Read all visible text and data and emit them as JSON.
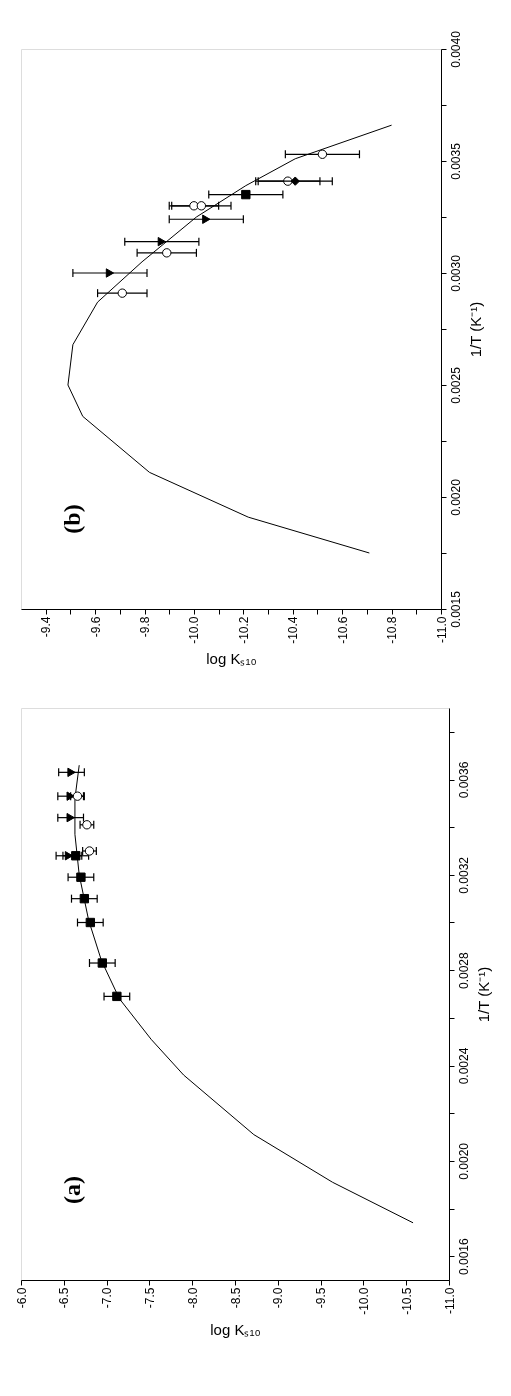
{
  "chart_data": [
    {
      "type": "scatter",
      "xlabel": "log Kₛ₁₀",
      "ylabel": "1/T  (K⁻¹)",
      "annotations": [
        "(b)"
      ],
      "grid": false,
      "ylim": [
        0.0015,
        0.004
      ],
      "yticks": [
        0.0015,
        {
          "value": 0.00175,
          "label": null
        },
        {
          "value": 0.002,
          "label": "0.0020"
        },
        {
          "value": 0.00225,
          "label": null
        },
        0.0025,
        {
          "value": 0.00275,
          "label": null
        },
        {
          "value": 0.003,
          "label": "0.0030"
        },
        {
          "value": 0.00325,
          "label": null
        },
        0.0035,
        {
          "value": 0.00375,
          "label": null
        },
        {
          "value": 0.004,
          "label": "0.0040"
        }
      ],
      "xlim": [
        -9.3,
        -11.0
      ],
      "xticks": [
        {
          "value": -11.0,
          "label": "-11.0"
        },
        {
          "value": -10.9,
          "label": null
        },
        -10.8,
        {
          "value": -10.7,
          "label": null
        },
        -10.6,
        {
          "value": -10.5,
          "label": null
        },
        -10.4,
        {
          "value": -10.3,
          "label": null
        },
        -10.2,
        {
          "value": -10.1,
          "label": null
        },
        {
          "value": -10.0,
          "label": "-10.0"
        },
        {
          "value": -9.9,
          "label": null
        },
        -9.8,
        {
          "value": -9.7,
          "label": null
        },
        -9.6,
        {
          "value": -9.5,
          "label": null
        },
        -9.4
      ],
      "series": [
        {
          "type": "line",
          "color": "#000000",
          "marker": "none",
          "x": [
            -10.71,
            -10.22,
            -9.82,
            -9.55,
            -9.49,
            -9.51,
            -9.61,
            -9.79,
            -10.01,
            -10.21,
            -10.41,
            -10.8
          ],
          "values": [
            0.00175,
            0.00191,
            0.00211,
            0.00236,
            0.0025,
            0.00268,
            0.00287,
            0.00305,
            0.00325,
            0.00339,
            0.00351,
            0.00366
          ]
        },
        {
          "color": "#000000",
          "marker": "circle",
          "x": [
            -9.71,
            -9.89,
            -10.0,
            -10.03,
            -10.38,
            -10.52
          ],
          "values": [
            0.00291,
            0.00309,
            0.0033,
            0.0033,
            0.00341,
            0.00353
          ],
          "xerrors": [
            0.1,
            0.12,
            0.1,
            0.12,
            0.13,
            0.15
          ]
        },
        {
          "color": "#000000",
          "marker": "triangle",
          "x": [
            -9.66,
            -9.87,
            -10.05
          ],
          "values": [
            0.003,
            0.00314,
            0.00324
          ],
          "xerrors": [
            0.15,
            0.15,
            0.15
          ]
        },
        {
          "color": "#000000",
          "marker": "square",
          "x": [
            -10.21
          ],
          "values": [
            0.00335
          ],
          "xerrors": [
            0.15
          ]
        },
        {
          "color": "#000000",
          "marker": "diamond",
          "x": [
            -10.41
          ],
          "values": [
            0.00341
          ],
          "xerrors": [
            0.15
          ]
        }
      ]
    },
    {
      "type": "scatter",
      "xlabel": "log Kₛ₁₀",
      "ylabel": "1/T  (K⁻¹)",
      "annotations": [
        "(a)"
      ],
      "grid": false,
      "ylim": [
        0.0015,
        0.0039
      ],
      "yticks": [
        0.0016,
        {
          "value": 0.0018,
          "label": null
        },
        {
          "value": 0.002,
          "label": "0.0020"
        },
        {
          "value": 0.0022,
          "label": null
        },
        0.0024,
        {
          "value": 0.0026,
          "label": null
        },
        0.0028,
        {
          "value": 0.003,
          "label": null
        },
        0.0032,
        {
          "value": 0.0034,
          "label": null
        },
        0.0036,
        {
          "value": 0.0038,
          "label": null
        }
      ],
      "xlim": [
        -6.0,
        -11.0
      ],
      "xticks": [
        {
          "value": -11.0,
          "label": "-11.0"
        },
        -10.5,
        {
          "value": -10.0,
          "label": "-10.0"
        },
        -9.5,
        {
          "value": -9.0,
          "label": "-9.0"
        },
        -8.5,
        {
          "value": -8.0,
          "label": "-8.0"
        },
        -7.5,
        {
          "value": -7.0,
          "label": "-7.0"
        },
        -6.5,
        {
          "value": -6.0,
          "label": "-6.0"
        }
      ],
      "series": [
        {
          "type": "line",
          "color": "#000000",
          "marker": "none",
          "x": [
            -10.58,
            -9.64,
            -8.72,
            -7.9,
            -7.52,
            -7.15,
            -6.94,
            -6.79,
            -6.68,
            -6.63,
            -6.63,
            -6.68
          ],
          "values": [
            0.00174,
            0.00191,
            0.00211,
            0.00236,
            0.00251,
            0.00268,
            0.00284,
            0.00301,
            0.0032,
            0.00337,
            0.00352,
            0.00366
          ]
        },
        {
          "color": "#000000",
          "marker": "square",
          "x": [
            -7.12,
            -6.95,
            -6.81,
            -6.74,
            -6.7,
            -6.64
          ],
          "values": [
            0.00269,
            0.00283,
            0.003,
            0.0031,
            0.00319,
            0.00328
          ],
          "xerrors": [
            0.15,
            0.15,
            0.15,
            0.15,
            0.15,
            0.15
          ]
        },
        {
          "color": "#000000",
          "marker": "triangle",
          "x": [
            -6.56,
            -6.58,
            -6.58,
            -6.59
          ],
          "values": [
            0.00328,
            0.00344,
            0.00353,
            0.00363
          ],
          "xerrors": [
            0.15,
            0.15,
            0.15,
            0.15
          ]
        },
        {
          "color": "#000000",
          "marker": "circle",
          "x": [
            -6.66,
            -6.77,
            -6.8
          ],
          "values": [
            0.00353,
            0.00341,
            0.0033
          ],
          "xerrors": [
            0.08,
            0.08,
            0.08
          ]
        }
      ]
    }
  ]
}
